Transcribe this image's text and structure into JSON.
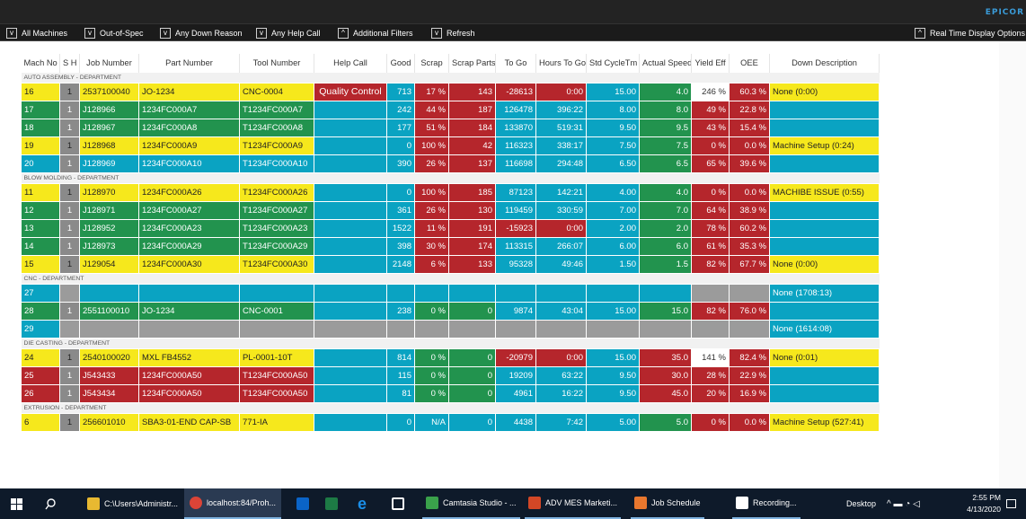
{
  "brand": "EPICOR",
  "filters": [
    {
      "check": "v",
      "label": "All Machines"
    },
    {
      "check": "v",
      "label": "Out-of-Spec"
    },
    {
      "check": "v",
      "label": "Any Down Reason"
    },
    {
      "check": "v",
      "label": "Any Help Call"
    },
    {
      "check": "^",
      "label": "Additional Filters"
    },
    {
      "check": "v",
      "label": "Refresh"
    },
    {
      "check": "^",
      "label": "Real Time Display Options"
    }
  ],
  "columns": [
    "Mach No",
    "S H",
    "Job Number",
    "Part Number",
    "Tool Number",
    "Help Call",
    "Good",
    "Scrap",
    "Scrap Parts",
    "To Go",
    "Hours To Go",
    "Std CycleTm",
    "Actual Speed",
    "Yield Eff",
    "OEE",
    "Down Description"
  ],
  "departments": [
    {
      "name": "AUTO ASSEMBLY - DEPARTMENT",
      "rows": [
        {
          "row": "yellow",
          "mach": "16",
          "sh": "1",
          "job": "2537100040",
          "part": "JO-1234",
          "tool": "CNC-0004",
          "help": "Quality Control",
          "good": "713",
          "scrap": "17 %",
          "scrapParts": "143",
          "togo": "-28613",
          "hours": "0:00",
          "std": "15.00",
          "speed": "4.0",
          "yield": "246 %",
          "oee": "60.3 %",
          "down": "None (0:00)",
          "c": [
            "cy",
            "cy",
            "cy",
            "cy",
            "cy",
            "cr",
            "cc",
            "cr",
            "cr",
            "cr",
            "cr",
            "cc",
            "cg",
            "cw",
            "cr",
            "cy"
          ]
        },
        {
          "row": "green",
          "mach": "17",
          "sh": "1",
          "job": "J128966",
          "part": "1234FC000A7",
          "tool": "T1234FC000A7",
          "help": "",
          "good": "242",
          "scrap": "44 %",
          "scrapParts": "187",
          "togo": "126478",
          "hours": "396:22",
          "std": "8.00",
          "speed": "8.0",
          "yield": "49 %",
          "oee": "22.8 %",
          "down": "",
          "c": [
            "cg",
            "cg",
            "cg",
            "cg",
            "cg",
            "cc",
            "cc",
            "cr",
            "cr",
            "cc",
            "cc",
            "cc",
            "cg",
            "cr",
            "cr",
            "cc"
          ]
        },
        {
          "row": "green",
          "mach": "18",
          "sh": "1",
          "job": "J128967",
          "part": "1234FC000A8",
          "tool": "T1234FC000A8",
          "help": "",
          "good": "177",
          "scrap": "51 %",
          "scrapParts": "184",
          "togo": "133870",
          "hours": "519:31",
          "std": "9.50",
          "speed": "9.5",
          "yield": "43 %",
          "oee": "15.4 %",
          "down": "",
          "c": [
            "cg",
            "cg",
            "cg",
            "cg",
            "cg",
            "cc",
            "cc",
            "cr",
            "cr",
            "cc",
            "cc",
            "cc",
            "cg",
            "cr",
            "cr",
            "cc"
          ]
        },
        {
          "row": "yellow",
          "mach": "19",
          "sh": "1",
          "job": "J128968",
          "part": "1234FC000A9",
          "tool": "T1234FC000A9",
          "help": "",
          "good": "0",
          "scrap": "100 %",
          "scrapParts": "42",
          "togo": "116323",
          "hours": "338:17",
          "std": "7.50",
          "speed": "7.5",
          "yield": "0 %",
          "oee": "0.0 %",
          "down": "Machine Setup (0:24)",
          "c": [
            "cy",
            "cy",
            "cy",
            "cy",
            "cy",
            "cc",
            "cc",
            "cr",
            "cr",
            "cc",
            "cc",
            "cc",
            "cg",
            "cr",
            "cr",
            "cy"
          ]
        },
        {
          "row": "cyan",
          "mach": "20",
          "sh": "1",
          "job": "J128969",
          "part": "1234FC000A10",
          "tool": "T1234FC000A10",
          "help": "",
          "good": "390",
          "scrap": "26 %",
          "scrapParts": "137",
          "togo": "116698",
          "hours": "294:48",
          "std": "6.50",
          "speed": "6.5",
          "yield": "65 %",
          "oee": "39.6 %",
          "down": "",
          "c": [
            "cc",
            "cc",
            "cc",
            "cc",
            "cc",
            "cc",
            "cc",
            "cr",
            "cr",
            "cc",
            "cc",
            "cc",
            "cg",
            "cr",
            "cr",
            "cc"
          ]
        }
      ]
    },
    {
      "name": "BLOW MOLDING - DEPARTMENT",
      "rows": [
        {
          "row": "yellow",
          "mach": "11",
          "sh": "1",
          "job": "J128970",
          "part": "1234FC000A26",
          "tool": "T1234FC000A26",
          "help": "",
          "good": "0",
          "scrap": "100 %",
          "scrapParts": "185",
          "togo": "87123",
          "hours": "142:21",
          "std": "4.00",
          "speed": "4.0",
          "yield": "0 %",
          "oee": "0.0 %",
          "down": "MACHIBE ISSUE (0:55)",
          "c": [
            "cy",
            "cy",
            "cy",
            "cy",
            "cy",
            "cc",
            "cc",
            "cr",
            "cr",
            "cc",
            "cc",
            "cc",
            "cg",
            "cr",
            "cr",
            "cy"
          ]
        },
        {
          "row": "green",
          "mach": "12",
          "sh": "1",
          "job": "J128971",
          "part": "1234FC000A27",
          "tool": "T1234FC000A27",
          "help": "",
          "good": "361",
          "scrap": "26 %",
          "scrapParts": "130",
          "togo": "119459",
          "hours": "330:59",
          "std": "7.00",
          "speed": "7.0",
          "yield": "64 %",
          "oee": "38.9 %",
          "down": "",
          "c": [
            "cg",
            "cg",
            "cg",
            "cg",
            "cg",
            "cc",
            "cc",
            "cr",
            "cr",
            "cc",
            "cc",
            "cc",
            "cg",
            "cr",
            "cr",
            "cc"
          ]
        },
        {
          "row": "green",
          "mach": "13",
          "sh": "1",
          "job": "J128952",
          "part": "1234FC000A23",
          "tool": "T1234FC000A23",
          "help": "",
          "good": "1522",
          "scrap": "11 %",
          "scrapParts": "191",
          "togo": "-15923",
          "hours": "0:00",
          "std": "2.00",
          "speed": "2.0",
          "yield": "78 %",
          "oee": "60.2 %",
          "down": "",
          "c": [
            "cg",
            "cg",
            "cg",
            "cg",
            "cg",
            "cc",
            "cc",
            "cr",
            "cr",
            "cr",
            "cr",
            "cc",
            "cg",
            "cr",
            "cr",
            "cc"
          ]
        },
        {
          "row": "green",
          "mach": "14",
          "sh": "1",
          "job": "J128973",
          "part": "1234FC000A29",
          "tool": "T1234FC000A29",
          "help": "",
          "good": "398",
          "scrap": "30 %",
          "scrapParts": "174",
          "togo": "113315",
          "hours": "266:07",
          "std": "6.00",
          "speed": "6.0",
          "yield": "61 %",
          "oee": "35.3 %",
          "down": "",
          "c": [
            "cg",
            "cg",
            "cg",
            "cg",
            "cg",
            "cc",
            "cc",
            "cr",
            "cr",
            "cc",
            "cc",
            "cc",
            "cg",
            "cr",
            "cr",
            "cc"
          ]
        },
        {
          "row": "yellow",
          "mach": "15",
          "sh": "1",
          "job": "J129054",
          "part": "1234FC000A30",
          "tool": "T1234FC000A30",
          "help": "",
          "good": "2148",
          "scrap": "6 %",
          "scrapParts": "133",
          "togo": "95328",
          "hours": "49:46",
          "std": "1.50",
          "speed": "1.5",
          "yield": "82 %",
          "oee": "67.7 %",
          "down": "None (0:00)",
          "c": [
            "cy",
            "cy",
            "cy",
            "cy",
            "cy",
            "cc",
            "cc",
            "cr",
            "cr",
            "cc",
            "cc",
            "cc",
            "cg",
            "cr",
            "cr",
            "cy"
          ]
        }
      ]
    },
    {
      "name": "CNC - DEPARTMENT",
      "rows": [
        {
          "row": "cyan",
          "mach": "27",
          "sh": "",
          "job": "",
          "part": "",
          "tool": "",
          "help": "",
          "good": "",
          "scrap": "",
          "scrapParts": "",
          "togo": "",
          "hours": "",
          "std": "",
          "speed": "",
          "yield": "",
          "oee": "",
          "down": "None (1708:13)",
          "c": [
            "cc",
            "cgr",
            "cc",
            "cc",
            "cc",
            "cc",
            "cc",
            "cc",
            "cc",
            "cc",
            "cc",
            "cc",
            "cc",
            "cgr",
            "cgr",
            "cc"
          ]
        },
        {
          "row": "green",
          "mach": "28",
          "sh": "1",
          "job": "2551100010",
          "part": "JO-1234",
          "tool": "CNC-0001",
          "help": "",
          "good": "238",
          "scrap": "0 %",
          "scrapParts": "0",
          "togo": "9874",
          "hours": "43:04",
          "std": "15.00",
          "speed": "15.0",
          "yield": "82 %",
          "oee": "76.0 %",
          "down": "",
          "c": [
            "cg",
            "cg",
            "cg",
            "cg",
            "cg",
            "cc",
            "cc",
            "cg",
            "cg",
            "cc",
            "cc",
            "cc",
            "cg",
            "cr",
            "cr",
            "cc"
          ]
        },
        {
          "row": "cyan",
          "mach": "29",
          "sh": "",
          "job": "",
          "part": "",
          "tool": "",
          "help": "",
          "good": "",
          "scrap": "",
          "scrapParts": "",
          "togo": "",
          "hours": "",
          "std": "",
          "speed": "",
          "yield": "",
          "oee": "",
          "down": "None (1614:08)",
          "c": [
            "cc",
            "cgr",
            "cgr",
            "cgr",
            "cgr",
            "cgr",
            "cgr",
            "cgr",
            "cgr",
            "cgr",
            "cgr",
            "cgr",
            "cgr",
            "cgr",
            "cgr",
            "cc"
          ]
        }
      ]
    },
    {
      "name": "DIE CASTING - DEPARTMENT",
      "rows": [
        {
          "row": "yellow",
          "mach": "24",
          "sh": "1",
          "job": "2540100020",
          "part": "MXL FB4552",
          "tool": "PL-0001-10T",
          "help": "",
          "good": "814",
          "scrap": "0 %",
          "scrapParts": "0",
          "togo": "-20979",
          "hours": "0:00",
          "std": "15.00",
          "speed": "35.0",
          "yield": "141 %",
          "oee": "82.4 %",
          "down": "None (0:01)",
          "c": [
            "cy",
            "cy",
            "cy",
            "cy",
            "cy",
            "cc",
            "cc",
            "cg",
            "cg",
            "cr",
            "cr",
            "cc",
            "cr",
            "cw",
            "cr",
            "cy"
          ]
        },
        {
          "row": "red",
          "mach": "25",
          "sh": "1",
          "job": "J543433",
          "part": "1234FC000A50",
          "tool": "T1234FC000A50",
          "help": "",
          "good": "115",
          "scrap": "0 %",
          "scrapParts": "0",
          "togo": "19209",
          "hours": "63:22",
          "std": "9.50",
          "speed": "30.0",
          "yield": "28 %",
          "oee": "22.9 %",
          "down": "",
          "c": [
            "cr",
            "cr",
            "cr",
            "cr",
            "cr",
            "cc",
            "cc",
            "cg",
            "cg",
            "cc",
            "cc",
            "cc",
            "cr",
            "cr",
            "cr",
            "cc"
          ]
        },
        {
          "row": "red",
          "mach": "26",
          "sh": "1",
          "job": "J543434",
          "part": "1234FC000A50",
          "tool": "T1234FC000A50",
          "help": "",
          "good": "81",
          "scrap": "0 %",
          "scrapParts": "0",
          "togo": "4961",
          "hours": "16:22",
          "std": "9.50",
          "speed": "45.0",
          "yield": "20 %",
          "oee": "16.9 %",
          "down": "",
          "c": [
            "cr",
            "cr",
            "cr",
            "cr",
            "cr",
            "cc",
            "cc",
            "cg",
            "cg",
            "cc",
            "cc",
            "cc",
            "cr",
            "cr",
            "cr",
            "cc"
          ]
        }
      ]
    },
    {
      "name": "EXTRUSION - DEPARTMENT",
      "rows": [
        {
          "row": "yellow",
          "mach": "6",
          "sh": "1",
          "job": "256601010",
          "part": "SBA3-01-END CAP-SB",
          "tool": "771-IA",
          "help": "",
          "good": "0",
          "scrap": "N/A",
          "scrapParts": "0",
          "togo": "4438",
          "hours": "7:42",
          "std": "5.00",
          "speed": "5.0",
          "yield": "0 %",
          "oee": "0.0 %",
          "down": "Machine Setup (527:41)",
          "c": [
            "cy",
            "cy",
            "cy",
            "cy",
            "cy",
            "cc",
            "cc",
            "cc",
            "cc",
            "cc",
            "cc",
            "cc",
            "cg",
            "cr",
            "cr",
            "cy"
          ]
        }
      ]
    }
  ],
  "taskbar": {
    "items": [
      {
        "icon": "folder-icon",
        "label": "C:\\Users\\Administr..."
      },
      {
        "icon": "chrome-icon",
        "label": "localhost:84/Proh..."
      },
      {
        "icon": "outlook-icon",
        "label": ""
      },
      {
        "icon": "excel-icon",
        "label": ""
      },
      {
        "icon": "ie-icon",
        "label": ""
      },
      {
        "icon": "window-icon",
        "label": ""
      },
      {
        "icon": "camtasia-icon",
        "label": "Camtasia Studio - ..."
      },
      {
        "icon": "powerpoint-icon",
        "label": "ADV MES Marketi..."
      },
      {
        "icon": "schedule-icon",
        "label": "Job Schedule"
      },
      {
        "icon": "recording-icon",
        "label": "Recording..."
      }
    ],
    "desktop": "Desktop",
    "time": "2:55 PM",
    "date": "4/13/2020"
  },
  "colors": {
    "yellow": "#f6e81c",
    "green": "#22934e",
    "cyan": "#0aa3c2",
    "red": "#b5262c",
    "grey": "#9b9b9b"
  }
}
